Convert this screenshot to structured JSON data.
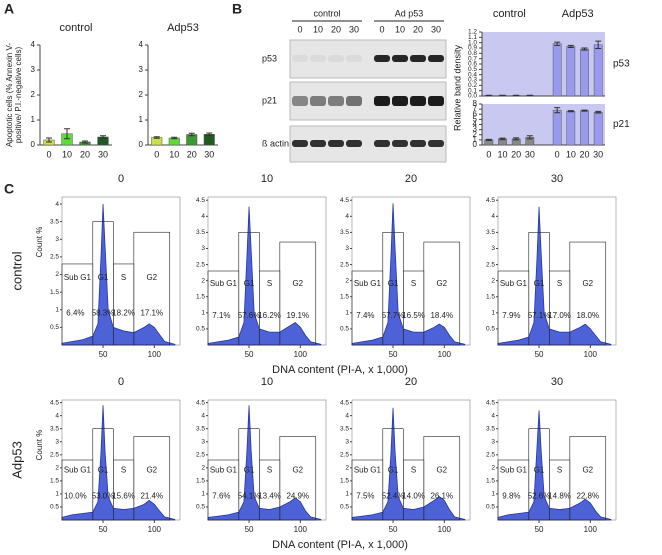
{
  "panel_labels": [
    "A",
    "B",
    "C"
  ],
  "blot": {
    "group_labels": [
      "control",
      "Ad p53"
    ],
    "lanes": [
      0,
      10,
      20,
      30,
      0,
      10,
      20,
      30
    ],
    "rows": [
      "p53",
      "p21",
      "ß actin"
    ]
  },
  "chart_data": [
    {
      "type": "bar",
      "title": "control",
      "ylabel": [
        "Apoptotic cells (% Annexin V-",
        "positive/ P.I.-negative cells)"
      ],
      "categories": [
        "0",
        "10",
        "20",
        "30"
      ],
      "values": [
        0.2,
        0.45,
        0.12,
        0.32
      ],
      "errors": [
        0.08,
        0.2,
        0.04,
        0.05
      ],
      "colors": [
        "#c8e04a",
        "#5fdc3c",
        "#3a9a30",
        "#1f5a20"
      ],
      "ylim": [
        0,
        4
      ],
      "yticks": [
        0,
        1,
        2,
        3,
        4
      ]
    },
    {
      "type": "bar",
      "title": "Adp53",
      "categories": [
        "0",
        "10",
        "20",
        "30"
      ],
      "values": [
        0.3,
        0.28,
        0.42,
        0.43
      ],
      "errors": [
        0.03,
        0.03,
        0.05,
        0.05
      ],
      "colors": [
        "#c8e04a",
        "#5fdc3c",
        "#3a9a30",
        "#1f5a20"
      ],
      "ylim": [
        0,
        4
      ],
      "yticks": [
        0,
        1,
        2,
        3,
        4
      ]
    },
    {
      "type": "bar",
      "group_labels": [
        "control",
        "Adp53"
      ],
      "label": "p53",
      "background": "#c8c8f0",
      "values": [
        0.01,
        0.01,
        0.01,
        0.01,
        0.98,
        0.93,
        0.88,
        0.96
      ],
      "errors": [
        0.005,
        0.005,
        0.005,
        0.005,
        0.03,
        0.02,
        0.02,
        0.07
      ],
      "colors": [
        "#888888",
        "#888888",
        "#888888",
        "#888888",
        "#9999ee",
        "#9999ee",
        "#9999ee",
        "#9999ee"
      ],
      "ylim": [
        0,
        1.2
      ],
      "yticks": [
        {
          "value": 0,
          "label": "0.0"
        },
        0.1,
        0.2,
        0.3,
        0.4,
        0.5,
        0.6,
        0.7,
        0.8,
        0.9,
        {
          "value": 1,
          "label": "1.0"
        },
        1.1,
        1.2
      ]
    },
    {
      "type": "bar",
      "ylabel": "Relative band density",
      "label": "p21",
      "background": "#c8c8f0",
      "categories": [
        "0",
        "10",
        "20",
        "30",
        "0",
        "10",
        "20",
        "30"
      ],
      "values": [
        1.0,
        1.2,
        1.2,
        1.5,
        6.8,
        6.6,
        6.7,
        6.4
      ],
      "errors": [
        0.1,
        0.15,
        0.2,
        0.3,
        0.5,
        0.1,
        0.1,
        0.15
      ],
      "colors": [
        "#888888",
        "#888888",
        "#888888",
        "#888888",
        "#9999ee",
        "#9999ee",
        "#9999ee",
        "#9999ee"
      ],
      "ylim": [
        0,
        8
      ],
      "yticks": [
        0,
        1,
        2,
        3,
        4,
        5,
        6,
        7,
        8
      ]
    },
    {
      "type": "area",
      "title": "0",
      "row_label": "control",
      "ylabel": "Count %",
      "x": [
        10,
        20,
        30,
        40,
        45,
        48,
        50,
        52,
        55,
        60,
        70,
        80,
        90,
        95,
        100,
        105,
        110,
        120
      ],
      "values": [
        0.05,
        0.1,
        0.15,
        0.25,
        0.6,
        2.5,
        4.0,
        2.8,
        1.0,
        0.5,
        0.4,
        0.35,
        0.5,
        0.6,
        0.5,
        0.3,
        0.1,
        0.02
      ],
      "gates": {
        "names": [
          "Sub G1",
          "G1",
          "S",
          "G2"
        ],
        "values": [
          6.4,
          58.3,
          18.2,
          17.1
        ],
        "value_labels": [
          "6.4%",
          "58.3%",
          "18.2%",
          "17.1%"
        ]
      },
      "xlim": [
        10,
        125
      ],
      "xticks": [
        50,
        100
      ],
      "ylim": [
        0,
        4.2
      ],
      "yticks": [
        0.5,
        1,
        1.5,
        2,
        2.5,
        3,
        3.5,
        4
      ]
    },
    {
      "type": "area",
      "title": "10",
      "xlabel": "DNA content (PI-A, x 1,000)",
      "x": [
        10,
        20,
        30,
        40,
        45,
        48,
        50,
        52,
        55,
        60,
        70,
        80,
        90,
        95,
        100,
        105,
        110,
        120
      ],
      "values": [
        0.05,
        0.1,
        0.15,
        0.25,
        0.7,
        2.8,
        4.3,
        3.0,
        1.0,
        0.5,
        0.4,
        0.4,
        0.6,
        0.7,
        0.55,
        0.3,
        0.1,
        0.02
      ],
      "gates": {
        "names": [
          "Sub G1",
          "G1",
          "S",
          "G2"
        ],
        "values": [
          7.1,
          57.6,
          16.2,
          19.1
        ],
        "value_labels": [
          "7.1%",
          "57.6%",
          "16.2%",
          "19.1%"
        ]
      },
      "xlim": [
        10,
        125
      ],
      "xticks": [
        50,
        100
      ],
      "ylim": [
        0,
        4.6
      ],
      "yticks": [
        0.5,
        1,
        1.5,
        2,
        2.5,
        3,
        3.5,
        4,
        4.5
      ]
    },
    {
      "type": "area",
      "title": "20",
      "x": [
        10,
        20,
        30,
        40,
        45,
        48,
        50,
        52,
        55,
        60,
        70,
        80,
        90,
        95,
        100,
        105,
        110,
        120
      ],
      "values": [
        0.05,
        0.1,
        0.15,
        0.25,
        0.7,
        2.8,
        4.4,
        3.0,
        1.0,
        0.5,
        0.4,
        0.4,
        0.55,
        0.65,
        0.55,
        0.3,
        0.1,
        0.02
      ],
      "gates": {
        "names": [
          "Sub G1",
          "G1",
          "S",
          "G2"
        ],
        "values": [
          7.4,
          57.7,
          16.5,
          18.4
        ],
        "value_labels": [
          "7.4%",
          "57.7%",
          "16.5%",
          "18.4%"
        ]
      },
      "xlim": [
        10,
        125
      ],
      "xticks": [
        50,
        100
      ],
      "ylim": [
        0,
        4.6
      ],
      "yticks": [
        0.5,
        1,
        1.5,
        2,
        2.5,
        3,
        3.5,
        4,
        4.5
      ]
    },
    {
      "type": "area",
      "title": "30",
      "x": [
        10,
        20,
        30,
        40,
        45,
        48,
        50,
        52,
        55,
        60,
        70,
        80,
        90,
        95,
        100,
        105,
        110,
        120
      ],
      "values": [
        0.05,
        0.1,
        0.15,
        0.25,
        0.7,
        2.7,
        4.3,
        2.9,
        1.0,
        0.5,
        0.4,
        0.4,
        0.55,
        0.65,
        0.5,
        0.3,
        0.1,
        0.02
      ],
      "gates": {
        "names": [
          "Sub G1",
          "G1",
          "S",
          "G2"
        ],
        "values": [
          7.9,
          57.1,
          17.0,
          18.0
        ],
        "value_labels": [
          "7.9%",
          "57.1%",
          "17.0%",
          "18.0%"
        ]
      },
      "xlim": [
        10,
        125
      ],
      "xticks": [
        50,
        100
      ],
      "ylim": [
        0,
        4.6
      ],
      "yticks": [
        0.5,
        1,
        1.5,
        2,
        2.5,
        3,
        3.5,
        4,
        4.5
      ]
    },
    {
      "type": "area",
      "title": "0",
      "row_label": "Adp53",
      "ylabel": "Count %",
      "x": [
        10,
        20,
        30,
        40,
        45,
        48,
        50,
        52,
        55,
        60,
        70,
        80,
        90,
        95,
        100,
        105,
        110,
        120
      ],
      "values": [
        0.1,
        0.2,
        0.25,
        0.3,
        0.7,
        2.6,
        4.4,
        2.6,
        0.9,
        0.45,
        0.4,
        0.45,
        0.6,
        0.75,
        0.6,
        0.35,
        0.12,
        0.02
      ],
      "gates": {
        "names": [
          "Sub G1",
          "G1",
          "S",
          "G2"
        ],
        "values": [
          10.0,
          53.0,
          15.6,
          21.4
        ],
        "value_labels": [
          "10.0%",
          "53.0%",
          "15.6%",
          "21.4%"
        ]
      },
      "xlim": [
        10,
        125
      ],
      "xticks": [
        50,
        100
      ],
      "ylim": [
        0,
        4.6
      ],
      "yticks": [
        0.5,
        1,
        1.5,
        2,
        2.5,
        3,
        3.5,
        4,
        4.5
      ]
    },
    {
      "type": "area",
      "title": "10",
      "xlabel": "DNA content (PI-A, x 1,000)",
      "x": [
        10,
        20,
        30,
        40,
        45,
        48,
        50,
        52,
        55,
        60,
        70,
        80,
        90,
        95,
        100,
        105,
        110,
        120
      ],
      "values": [
        0.1,
        0.15,
        0.2,
        0.3,
        0.7,
        2.7,
        4.4,
        2.7,
        0.9,
        0.45,
        0.4,
        0.5,
        0.7,
        0.85,
        0.7,
        0.35,
        0.12,
        0.02
      ],
      "gates": {
        "names": [
          "Sub G1",
          "G1",
          "S",
          "G2"
        ],
        "values": [
          7.6,
          54.1,
          13.4,
          24.9
        ],
        "value_labels": [
          "7.6%",
          "54.1%",
          "13.4%",
          "24.9%"
        ]
      },
      "xlim": [
        10,
        125
      ],
      "xticks": [
        50,
        100
      ],
      "ylim": [
        0,
        4.6
      ],
      "yticks": [
        0.5,
        1,
        1.5,
        2,
        2.5,
        3,
        3.5,
        4,
        4.5
      ]
    },
    {
      "type": "area",
      "title": "20",
      "x": [
        10,
        20,
        30,
        40,
        45,
        48,
        50,
        52,
        55,
        60,
        70,
        80,
        90,
        95,
        100,
        105,
        110,
        120
      ],
      "values": [
        0.1,
        0.15,
        0.2,
        0.3,
        0.7,
        2.6,
        4.3,
        2.6,
        0.9,
        0.45,
        0.4,
        0.5,
        0.75,
        0.9,
        0.75,
        0.4,
        0.12,
        0.02
      ],
      "gates": {
        "names": [
          "Sub G1",
          "G1",
          "S",
          "G2"
        ],
        "values": [
          7.5,
          52.4,
          14.0,
          26.1
        ],
        "value_labels": [
          "7.5%",
          "52.4%",
          "14.0%",
          "26.1%"
        ]
      },
      "xlim": [
        10,
        125
      ],
      "xticks": [
        50,
        100
      ],
      "ylim": [
        0,
        4.6
      ],
      "yticks": [
        0.5,
        1,
        1.5,
        2,
        2.5,
        3,
        3.5,
        4,
        4.5
      ]
    },
    {
      "type": "area",
      "title": "30",
      "x": [
        10,
        20,
        30,
        40,
        45,
        48,
        50,
        52,
        55,
        60,
        70,
        80,
        90,
        95,
        100,
        105,
        110,
        120
      ],
      "values": [
        0.1,
        0.2,
        0.25,
        0.3,
        0.7,
        2.8,
        4.2,
        2.7,
        0.9,
        0.45,
        0.4,
        0.45,
        0.65,
        0.8,
        0.65,
        0.35,
        0.12,
        0.02
      ],
      "gates": {
        "names": [
          "Sub G1",
          "G1",
          "S",
          "G2"
        ],
        "values": [
          9.8,
          52.6,
          14.8,
          22.8
        ],
        "value_labels": [
          "9.8%",
          "52.6%",
          "14.8%",
          "22.8%"
        ]
      },
      "xlim": [
        10,
        125
      ],
      "xticks": [
        50,
        100
      ],
      "ylim": [
        0,
        4.6
      ],
      "yticks": [
        0.5,
        1,
        1.5,
        2,
        2.5,
        3,
        3.5,
        4,
        4.5
      ]
    }
  ]
}
